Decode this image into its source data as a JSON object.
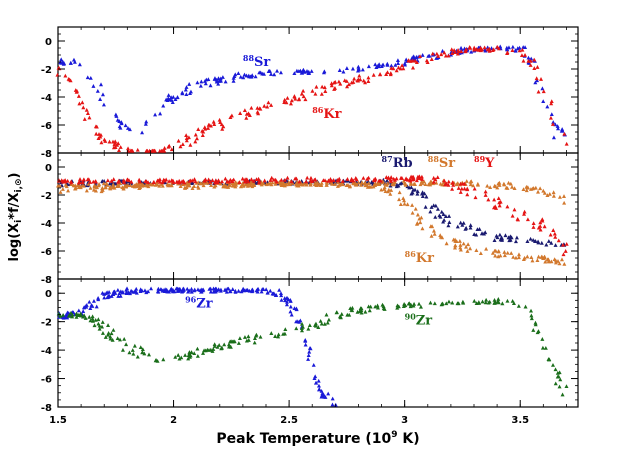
{
  "figure": {
    "xlabel": "Peak Temperature (10",
    "xlabel_exp": "9",
    "xlabel_unit": " K)",
    "ylabel": "log(X",
    "ylabel_i": "i",
    "ylabel_mid": "*f/X",
    "ylabel_sub": "i,⊙",
    "ylabel_end": ")"
  },
  "chart_data": [
    {
      "type": "scatter",
      "panel": "top",
      "xlim": [
        1.5,
        3.75
      ],
      "ylim": [
        -8,
        1
      ],
      "xticks": [
        "1.5",
        "2",
        "2.5",
        "3",
        "3.5"
      ],
      "yticks": [
        "0",
        "-2",
        "-4",
        "-6",
        "-8"
      ],
      "tick_values": [
        0,
        -2,
        -4,
        -6,
        -8
      ],
      "series": [
        {
          "name": "Sr",
          "mass": "88",
          "color": "#1a1ad8",
          "x": [
            1.5,
            1.6,
            1.65,
            1.7,
            1.75,
            1.8,
            1.85,
            1.9,
            1.95,
            2.0,
            2.1,
            2.2,
            2.3,
            2.4,
            2.5,
            2.6,
            2.7,
            2.8,
            2.9,
            3.0,
            3.1,
            3.2,
            3.3,
            3.4,
            3.5,
            3.55,
            3.6,
            3.65,
            3.7
          ],
          "y": [
            -1.4,
            -1.6,
            -2.6,
            -4.0,
            -5.6,
            -6.4,
            -6.5,
            -5.8,
            -4.6,
            -3.9,
            -3.2,
            -2.8,
            -2.5,
            -2.3,
            -2.2,
            -2.2,
            -2.1,
            -2.0,
            -1.8,
            -1.5,
            -1.1,
            -0.8,
            -0.6,
            -0.5,
            -0.6,
            -1.4,
            -3.8,
            -6.2,
            -7.0
          ]
        },
        {
          "name": "Kr",
          "mass": "86",
          "color": "#e51414",
          "x": [
            1.5,
            1.55,
            1.6,
            1.65,
            1.7,
            1.75,
            1.8,
            1.85,
            1.9,
            1.95,
            2.0,
            2.1,
            2.2,
            2.3,
            2.4,
            2.5,
            2.6,
            2.7,
            2.8,
            2.9,
            3.0,
            3.1,
            3.2,
            3.3,
            3.4,
            3.5,
            3.55,
            3.6,
            3.65,
            3.7
          ],
          "y": [
            -1.8,
            -3.0,
            -4.6,
            -6.2,
            -7.0,
            -7.4,
            -7.8,
            -8.0,
            -8.0,
            -8.0,
            -7.6,
            -6.8,
            -6.0,
            -5.3,
            -4.7,
            -4.2,
            -3.7,
            -3.2,
            -2.8,
            -2.3,
            -1.8,
            -1.2,
            -0.8,
            -0.6,
            -0.6,
            -0.8,
            -1.6,
            -3.6,
            -5.8,
            -7.0
          ]
        }
      ],
      "annotations": [
        {
          "mass": "88",
          "text": "Sr",
          "color": "#1a1ad8",
          "x": 2.3,
          "y": -1.8
        },
        {
          "mass": "86",
          "text": "Kr",
          "color": "#e51414",
          "x": 2.6,
          "y": -5.5
        }
      ]
    },
    {
      "type": "scatter",
      "panel": "middle",
      "xlim": [
        1.5,
        3.75
      ],
      "ylim": [
        -8,
        1
      ],
      "xticks": [
        "1.5",
        "2",
        "2.5",
        "3",
        "3.5"
      ],
      "yticks": [
        "0",
        "-2",
        "-4",
        "-6",
        "-8"
      ],
      "tick_values": [
        0,
        -2,
        -4,
        -6,
        -8
      ],
      "series": [
        {
          "name": "Rb",
          "mass": "87",
          "color": "#1a1a70",
          "x": [
            1.5,
            1.8,
            2.2,
            2.6,
            2.9,
            3.0,
            3.05,
            3.1,
            3.15,
            3.2,
            3.3,
            3.4,
            3.5,
            3.55,
            3.6,
            3.65,
            3.7
          ],
          "y": [
            -1.2,
            -1.1,
            -1.1,
            -1.1,
            -1.1,
            -1.3,
            -1.8,
            -2.6,
            -3.4,
            -4.0,
            -4.6,
            -5.0,
            -5.2,
            -5.3,
            -5.4,
            -5.5,
            -5.6
          ]
        },
        {
          "name": "Kr",
          "mass": "86",
          "color": "#d2782d",
          "x": [
            1.5,
            1.8,
            2.2,
            2.6,
            2.9,
            2.95,
            3.0,
            3.05,
            3.1,
            3.15,
            3.2,
            3.3,
            3.4,
            3.5,
            3.6,
            3.7
          ],
          "y": [
            -1.7,
            -1.5,
            -1.3,
            -1.2,
            -1.3,
            -1.8,
            -2.6,
            -3.6,
            -4.4,
            -5.0,
            -5.4,
            -5.9,
            -6.2,
            -6.4,
            -6.6,
            -6.8
          ]
        },
        {
          "name": "Sr",
          "mass": "88",
          "color": "#d2782d",
          "x": [
            1.5,
            1.8,
            2.2,
            2.6,
            2.9,
            3.1,
            3.3,
            3.5,
            3.6,
            3.7
          ],
          "y": [
            -1.4,
            -1.3,
            -1.2,
            -1.2,
            -1.2,
            -1.1,
            -1.2,
            -1.4,
            -1.8,
            -2.4
          ]
        },
        {
          "name": "Y",
          "mass": "89",
          "color": "#e51414",
          "x": [
            1.5,
            1.8,
            2.2,
            2.6,
            2.9,
            3.1,
            3.2,
            3.3,
            3.4,
            3.5,
            3.6,
            3.65,
            3.7
          ],
          "y": [
            -1.0,
            -1.0,
            -1.0,
            -0.9,
            -0.9,
            -0.8,
            -1.2,
            -1.8,
            -2.6,
            -3.4,
            -4.2,
            -5.0,
            -6.0
          ]
        }
      ],
      "annotations": [
        {
          "mass": "87",
          "text": "Rb",
          "color": "#1a1a70",
          "x": 2.9,
          "y": 0.0
        },
        {
          "mass": "88",
          "text": "Sr",
          "color": "#d2782d",
          "x": 3.1,
          "y": 0.0
        },
        {
          "mass": "89",
          "text": "Y",
          "color": "#e51414",
          "x": 3.3,
          "y": 0.0
        },
        {
          "mass": "86",
          "text": "Kr",
          "color": "#d2782d",
          "x": 3.0,
          "y": -6.8
        }
      ]
    },
    {
      "type": "scatter",
      "panel": "bottom",
      "xlim": [
        1.5,
        3.75
      ],
      "ylim": [
        -8,
        1
      ],
      "xticks": [
        "1.5",
        "2",
        "2.5",
        "3",
        "3.5"
      ],
      "yticks": [
        "0",
        "-2",
        "-4",
        "-6",
        "-8"
      ],
      "tick_values": [
        0,
        -2,
        -4,
        -6,
        -8
      ],
      "series": [
        {
          "name": "Zr",
          "mass": "96",
          "color": "#1a1ad8",
          "x": [
            1.5,
            1.6,
            1.65,
            1.7,
            1.8,
            1.9,
            2.0,
            2.2,
            2.4,
            2.45,
            2.5,
            2.55,
            2.58,
            2.6,
            2.62,
            2.65,
            2.7
          ],
          "y": [
            -1.6,
            -1.4,
            -0.8,
            -0.2,
            0.1,
            0.2,
            0.2,
            0.2,
            0.2,
            0.0,
            -0.6,
            -2.0,
            -3.6,
            -5.0,
            -6.2,
            -7.2,
            -8.0
          ]
        },
        {
          "name": "Zr",
          "mass": "90",
          "color": "#1a6e1a",
          "x": [
            1.5,
            1.6,
            1.65,
            1.7,
            1.8,
            1.9,
            1.95,
            2.0,
            2.1,
            2.2,
            2.3,
            2.4,
            2.5,
            2.6,
            2.7,
            2.8,
            2.9,
            3.0,
            3.1,
            3.2,
            3.3,
            3.4,
            3.5,
            3.55,
            3.6,
            3.65,
            3.7
          ],
          "y": [
            -1.6,
            -1.5,
            -1.8,
            -2.6,
            -3.8,
            -4.6,
            -4.8,
            -4.6,
            -4.2,
            -3.8,
            -3.4,
            -3.0,
            -2.7,
            -2.2,
            -1.6,
            -1.2,
            -1.0,
            -0.9,
            -0.8,
            -0.7,
            -0.6,
            -0.6,
            -0.8,
            -1.6,
            -3.4,
            -5.6,
            -7.0
          ]
        }
      ],
      "annotations": [
        {
          "mass": "96",
          "text": "Zr",
          "color": "#1a1ad8",
          "x": 2.05,
          "y": -1.0
        },
        {
          "mass": "90",
          "text": "Zr",
          "color": "#1a6e1a",
          "x": 3.0,
          "y": -2.2
        }
      ]
    }
  ]
}
